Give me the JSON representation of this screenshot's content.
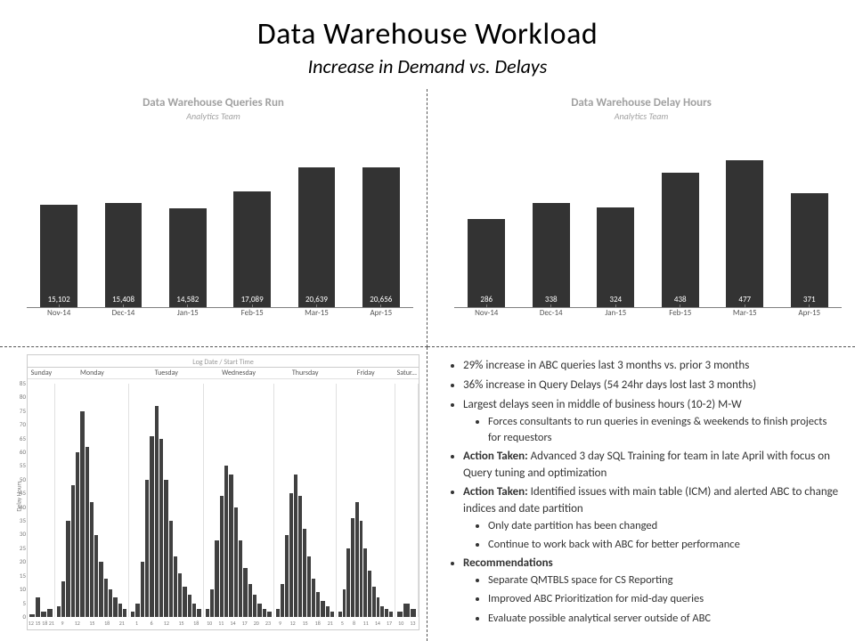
{
  "header": {
    "title": "Data Warehouse Workload",
    "subtitle": "Increase in Demand vs. Delays"
  },
  "queries_chart": {
    "type": "bar",
    "title": "Data Warehouse Queries Run",
    "subtitle": "Analytics Team",
    "categories": [
      "Nov-14",
      "Dec-14",
      "Jan-15",
      "Feb-15",
      "Mar-15",
      "Apr-15"
    ],
    "values": [
      15102,
      15408,
      14582,
      17089,
      20639,
      20656
    ],
    "labels": [
      "15,102",
      "15,408",
      "14,582",
      "17,089",
      "20,639",
      "20,656"
    ],
    "ylim": [
      0,
      25000
    ],
    "bar_color": "#333333",
    "label_color": "#ffffff",
    "title_color": "#a1a1a1",
    "label_fontsize": 9,
    "title_fontsize": 13,
    "background_color": "#ffffff"
  },
  "delays_chart": {
    "type": "bar",
    "title": "Data Warehouse Delay Hours",
    "subtitle": "Analytics Team",
    "categories": [
      "Nov-14",
      "Dec-14",
      "Jan-15",
      "Feb-15",
      "Mar-15",
      "Apr-15"
    ],
    "values": [
      286,
      338,
      324,
      438,
      477,
      371
    ],
    "labels": [
      "286",
      "338",
      "324",
      "438",
      "477",
      "371"
    ],
    "ylim": [
      0,
      550
    ],
    "bar_color": "#333333",
    "label_color": "#ffffff",
    "title_color": "#a1a1a1",
    "label_fontsize": 9,
    "title_fontsize": 13,
    "background_color": "#ffffff"
  },
  "hist": {
    "type": "histogram-small-multiples",
    "title": "Log Date / Start Time",
    "ylabel": "Delay Hours",
    "ylim": [
      0,
      85
    ],
    "yticks": [
      0,
      5,
      10,
      15,
      20,
      25,
      30,
      35,
      40,
      45,
      50,
      55,
      60,
      65,
      70,
      75,
      80,
      85
    ],
    "bar_color": "#404040",
    "grid_color": "#f0f0f0",
    "panels": [
      {
        "name": "Sunday",
        "width": 7,
        "hours": [
          "12",
          "15",
          "18",
          "21"
        ],
        "values": [
          1,
          7,
          2,
          3
        ]
      },
      {
        "name": "Monday",
        "width": 19,
        "hours": [
          "9",
          "12",
          "15",
          "18",
          "21"
        ],
        "values": [
          4,
          13,
          35,
          48,
          60,
          75,
          62,
          42,
          30,
          20,
          14,
          10,
          7,
          5,
          3
        ]
      },
      {
        "name": "Tuesday",
        "width": 19,
        "hours": [
          "1",
          "6",
          "12",
          "15",
          "18"
        ],
        "values": [
          2,
          5,
          20,
          50,
          66,
          77,
          65,
          50,
          35,
          22,
          16,
          11,
          8,
          5,
          3
        ]
      },
      {
        "name": "Wednesday",
        "width": 18,
        "hours": [
          "10",
          "11",
          "14",
          "17",
          "20",
          "23"
        ],
        "values": [
          3,
          10,
          28,
          44,
          55,
          52,
          40,
          28,
          18,
          12,
          8,
          5,
          3,
          2
        ]
      },
      {
        "name": "Thursday",
        "width": 16,
        "hours": [
          "9",
          "12",
          "15",
          "18",
          "21"
        ],
        "values": [
          3,
          12,
          30,
          45,
          52,
          44,
          32,
          22,
          14,
          9,
          6,
          4,
          2
        ]
      },
      {
        "name": "Friday",
        "width": 15,
        "hours": [
          "5",
          "8",
          "11",
          "14",
          "17"
        ],
        "values": [
          2,
          10,
          25,
          36,
          42,
          35,
          25,
          17,
          11,
          7,
          4,
          3,
          2
        ]
      },
      {
        "name": "Satur...",
        "width": 6,
        "hours": [
          "10",
          "13"
        ],
        "values": [
          2,
          5,
          3
        ]
      }
    ]
  },
  "bullets": {
    "items": [
      {
        "text": "29% increase in ABC queries last 3 months vs. prior 3 months"
      },
      {
        "text": "36% increase in Query Delays (54 24hr days lost last 3 months)"
      },
      {
        "text": "Largest delays seen in middle of business hours (10-2) M-W",
        "sub": [
          {
            "text": "Forces consultants to run queries in evenings & weekends to finish projects for requestors"
          }
        ]
      },
      {
        "bold": "Action Taken:",
        "text": " Advanced 3 day SQL Training for team in late April with focus on Query tuning and optimization"
      },
      {
        "bold": "Action Taken:",
        "text": " Identified issues with main table (ICM) and alerted ABC to change indices and date partition",
        "sub": [
          {
            "text": "Only date partition has been changed"
          },
          {
            "text": "Continue to work back with ABC for better performance"
          }
        ]
      },
      {
        "bold": "Recommendations",
        "text": "",
        "sub": [
          {
            "text": "Separate QMTBLS space for CS Reporting"
          },
          {
            "text": "Improved ABC Prioritization for mid-day queries"
          },
          {
            "text": "Evaluate possible analytical server outside of ABC"
          }
        ]
      }
    ]
  }
}
